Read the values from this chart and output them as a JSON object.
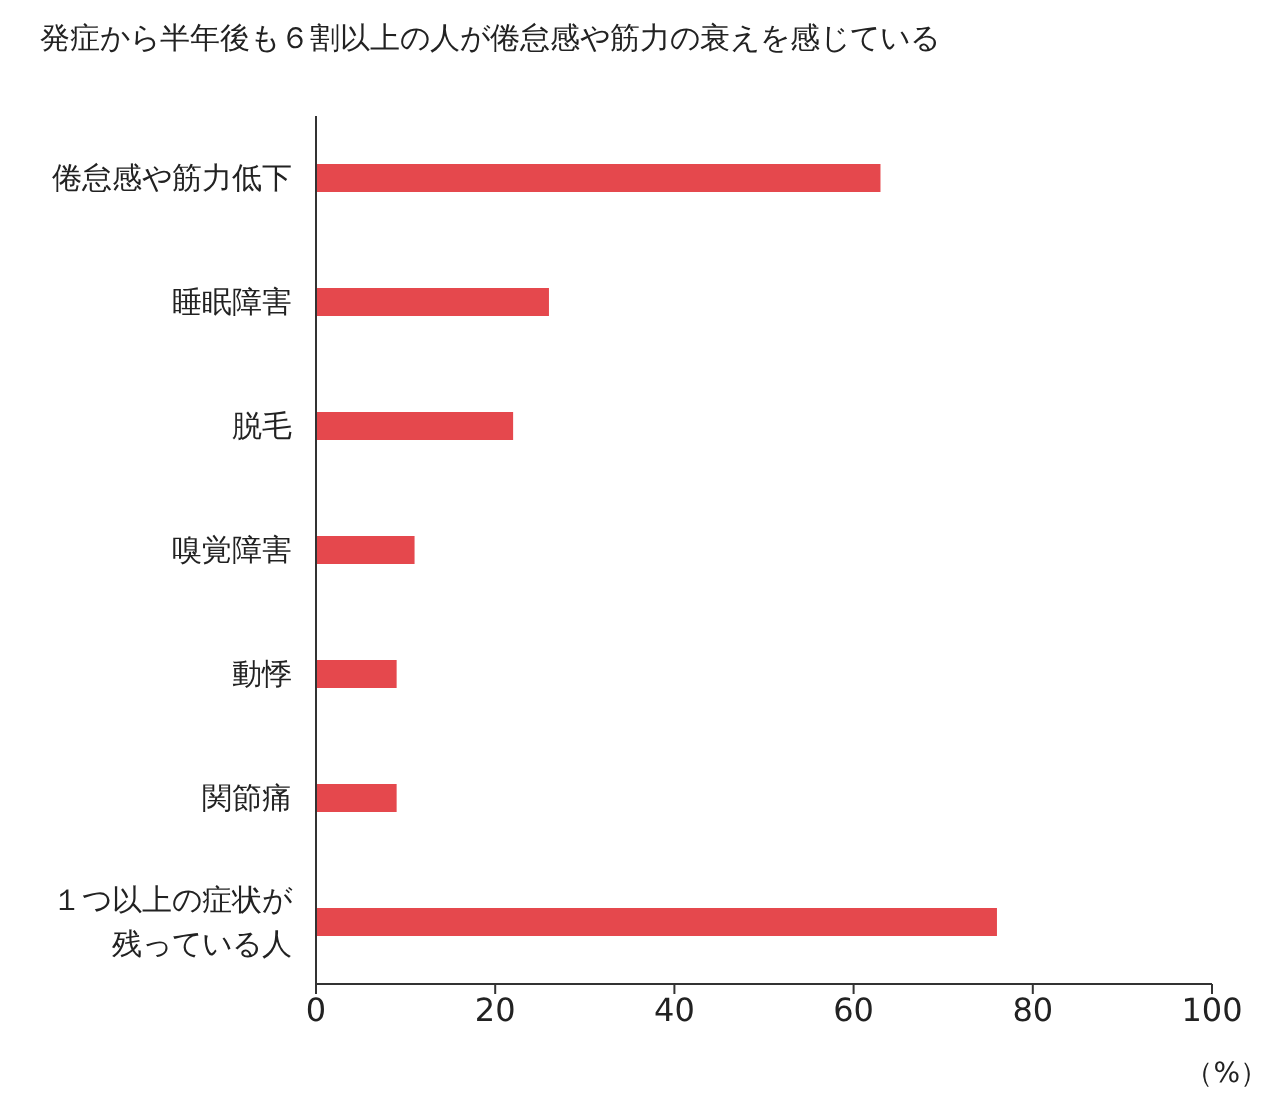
{
  "chart_data": {
    "type": "bar",
    "orientation": "horizontal",
    "title": "発症から半年後も６割以上の人が倦怠感や筋力の衰えを感じている",
    "xlabel": "（%）",
    "categories": [
      "倦怠感や筋力低下",
      "睡眠障害",
      "脱毛",
      "嗅覚障害",
      "動悸",
      "関節痛",
      "１つ以上の症状が残っている人"
    ],
    "values": [
      63,
      26,
      22,
      11,
      9,
      9,
      76
    ],
    "color": "#e5484d",
    "xlim": [
      0,
      100
    ],
    "xticks": [
      0,
      20,
      40,
      60,
      80,
      100
    ],
    "grid": false
  }
}
